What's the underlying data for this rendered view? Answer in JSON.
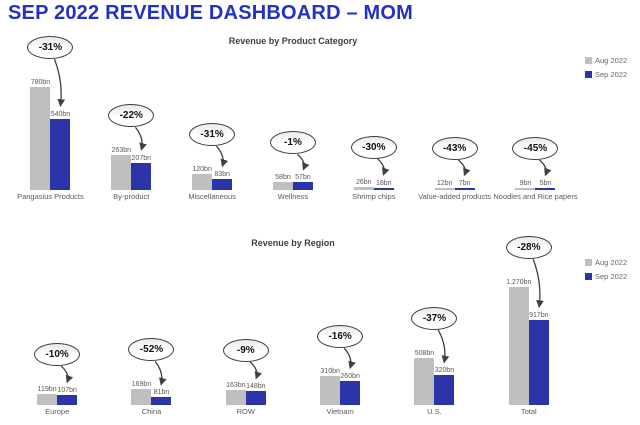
{
  "header": {
    "title": "SEP 2022 REVENUE DASHBOARD – MOM"
  },
  "chart_data": [
    {
      "type": "bar",
      "title": "Revenue by Product Category",
      "categories": [
        "Pangasius Products",
        "By-product",
        "Miscellaneous",
        "Wellness",
        "Shrimp chips",
        "Value-added products",
        "Noodles and Rice papers"
      ],
      "series": [
        {
          "name": "Aug 2022",
          "color": "#BFBFBF",
          "values": [
            780,
            263,
            120,
            58,
            26,
            12,
            9
          ],
          "labels": [
            "780bn",
            "263bn",
            "120bn",
            "58bn",
            "26bn",
            "12bn",
            "9bn"
          ]
        },
        {
          "name": "Sep 2022",
          "color": "#2B35A8",
          "values": [
            540,
            207,
            83,
            57,
            18,
            7,
            5
          ],
          "labels": [
            "540bn",
            "207bn",
            "83bn",
            "57bn",
            "18bn",
            "7bn",
            "5bn"
          ]
        }
      ],
      "deltas": [
        "-31%",
        "-22%",
        "-31%",
        "-1%",
        "-30%",
        "-43%",
        "-45%"
      ],
      "unit": "bn",
      "ylim": [
        0,
        800
      ],
      "legend_position": "right",
      "grid": false
    },
    {
      "type": "bar",
      "title": "Revenue by Region",
      "categories": [
        "Europe",
        "China",
        "ROW",
        "Vietnam",
        "U.S.",
        "Total"
      ],
      "series": [
        {
          "name": "Aug 2022",
          "color": "#BFBFBF",
          "values": [
            119,
            169,
            163,
            310,
            508,
            1270
          ],
          "labels": [
            "119bn",
            "169bn",
            "163bn",
            "310bn",
            "508bn",
            "1,270bn"
          ]
        },
        {
          "name": "Sep 2022",
          "color": "#2B35A8",
          "values": [
            107,
            81,
            148,
            260,
            320,
            917
          ],
          "labels": [
            "107bn",
            "81bn",
            "148bn",
            "260bn",
            "320bn",
            "917bn"
          ]
        }
      ],
      "deltas": [
        "-10%",
        "-52%",
        "-9%",
        "-16%",
        "-37%",
        "-28%"
      ],
      "unit": "bn",
      "ylim": [
        0,
        1300
      ],
      "legend_position": "right",
      "grid": false
    }
  ]
}
